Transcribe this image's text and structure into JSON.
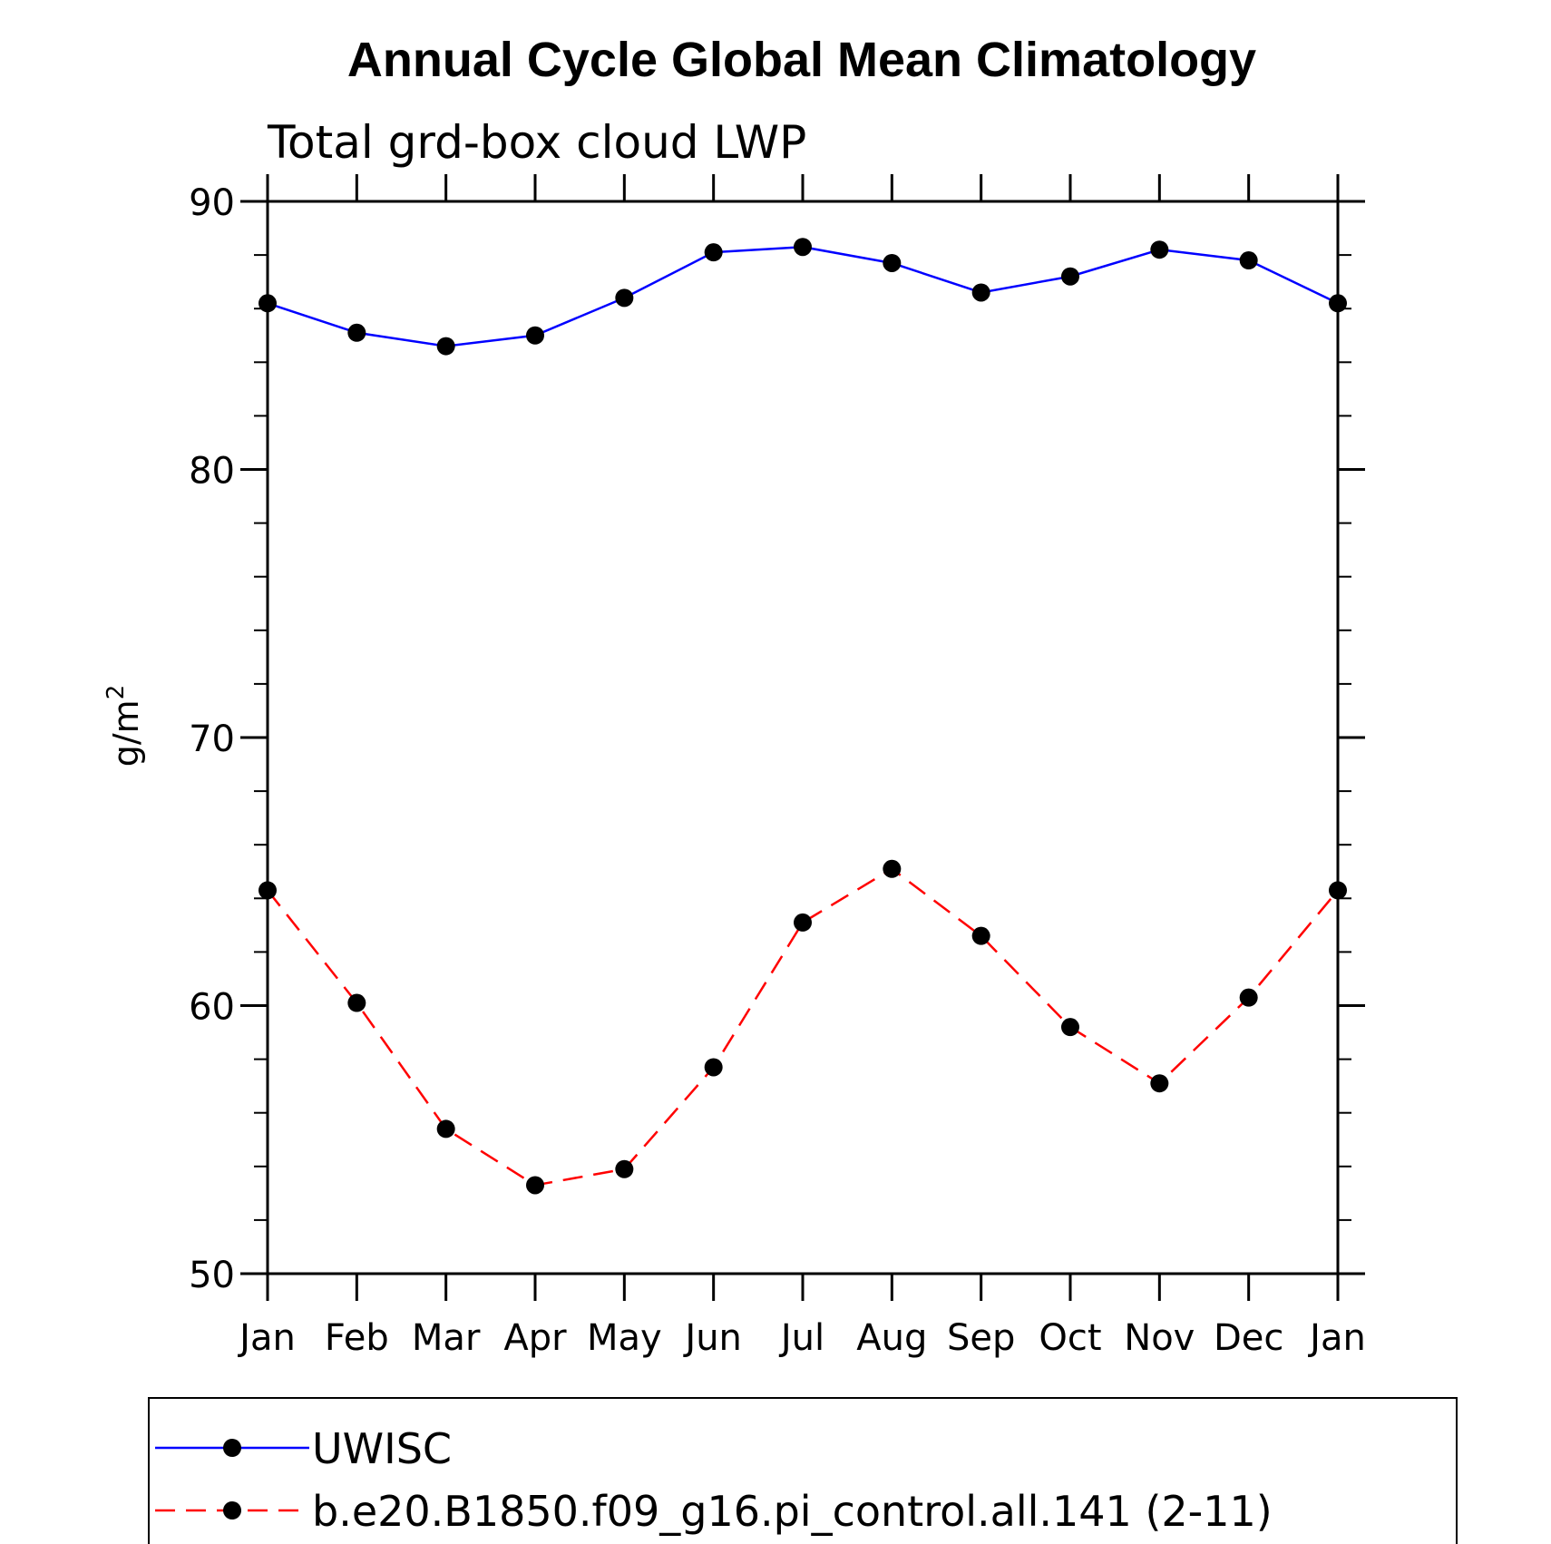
{
  "chart_data": {
    "type": "line",
    "title": "Annual Cycle Global Mean Climatology",
    "subtitle": "Total grd-box cloud LWP",
    "ylabel_base": "g/m",
    "ylabel_sup": "2",
    "xlabel": "",
    "categories": [
      "Jan",
      "Feb",
      "Mar",
      "Apr",
      "May",
      "Jun",
      "Jul",
      "Aug",
      "Sep",
      "Oct",
      "Nov",
      "Dec",
      "Jan"
    ],
    "ylim": [
      50,
      90
    ],
    "yticks": [
      50,
      60,
      70,
      80,
      90
    ],
    "y_minor_step": 2,
    "grid": false,
    "legend_position": "bottom",
    "series": [
      {
        "name": "UWISC",
        "color": "#0000ff",
        "dashed": false,
        "marker": "filled-circle",
        "values": [
          86.2,
          85.1,
          84.6,
          85.0,
          86.4,
          88.1,
          88.3,
          87.7,
          86.6,
          87.2,
          88.2,
          87.8,
          86.2
        ]
      },
      {
        "name": "b.e20.B1850.f09_g16.pi_control.all.141 (2-11)",
        "color": "#ff0000",
        "dashed": true,
        "marker": "filled-circle",
        "values": [
          64.3,
          60.1,
          55.4,
          53.3,
          53.9,
          57.7,
          63.1,
          65.1,
          62.6,
          59.2,
          57.1,
          60.3,
          64.3
        ]
      }
    ]
  }
}
